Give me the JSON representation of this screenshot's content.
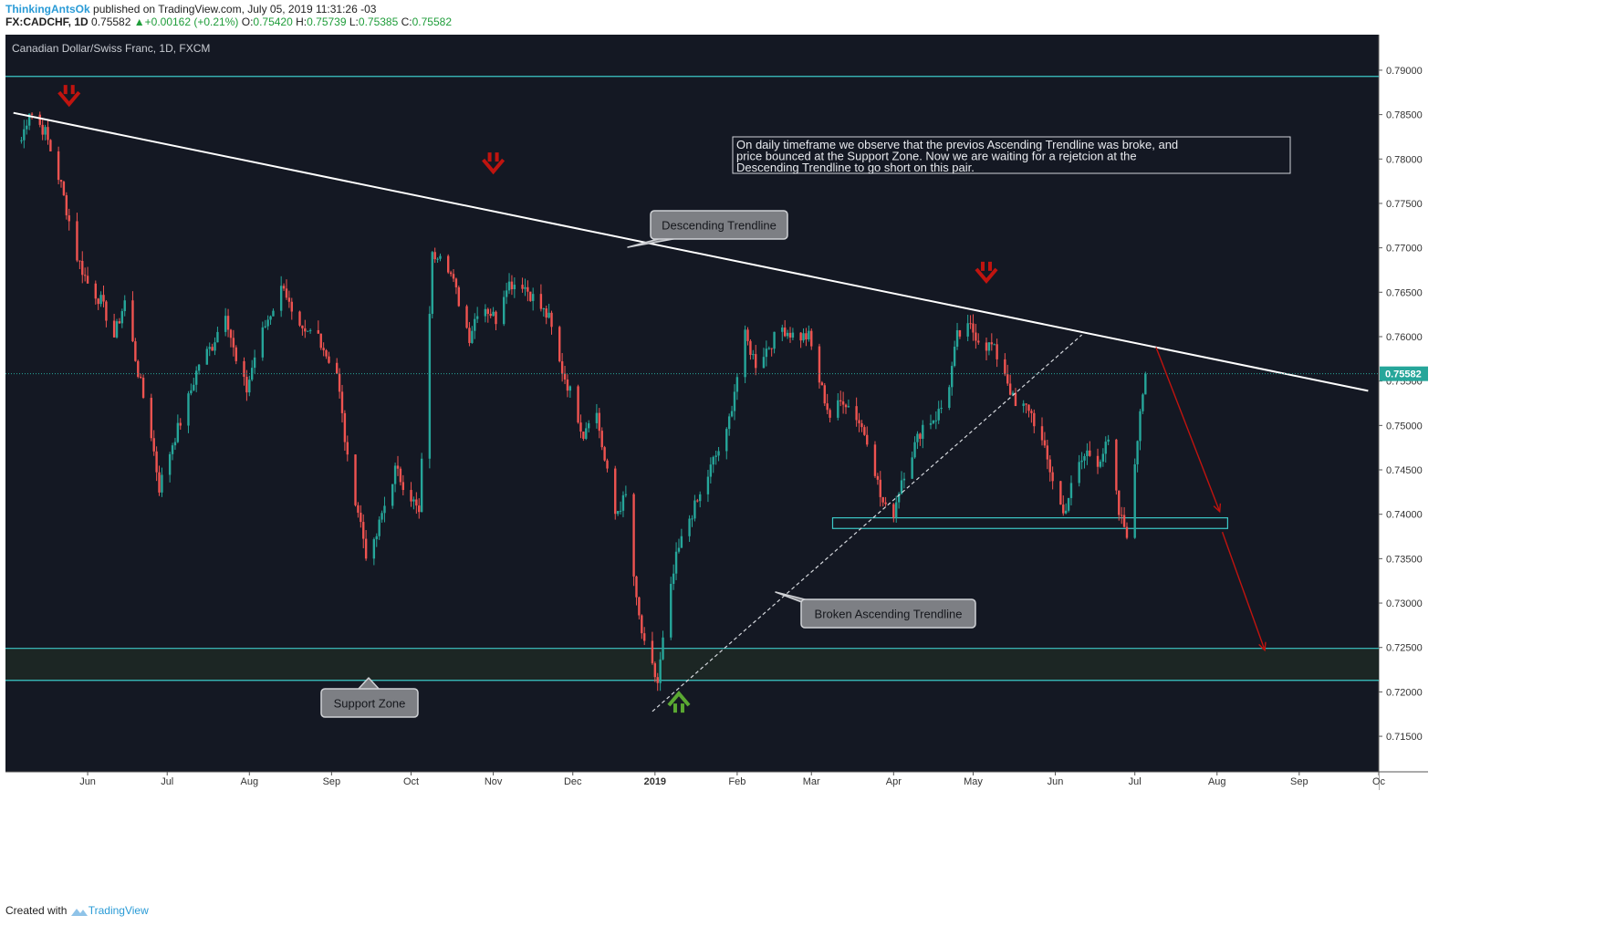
{
  "header": {
    "author": "ThinkingAntsOk",
    "published_text": "published on TradingView.com, July 05, 2019 11:31:26 -03",
    "symbol": "FX:CADCHF, 1D",
    "price": "0.75582",
    "change": "+0.00162 (+0.21%)",
    "open_label": "O:",
    "open": "0.75420",
    "high_label": "H:",
    "high": "0.75739",
    "low_label": "L:",
    "low": "0.75385",
    "close_label": "C:",
    "close": "0.75582"
  },
  "footer": {
    "created_with": "Created with",
    "brand": "TradingView"
  },
  "colors": {
    "background": "#141823",
    "up": "#26a69a",
    "down": "#ef5350",
    "zone_line": "#3cc8c8",
    "trendline": "#ffffff",
    "arrow_red": "#c0140f",
    "arrow_green": "#5aa832",
    "price_label": "#26a69a"
  },
  "chart_data": {
    "type": "candlestick",
    "title": "Canadian Dollar/Swiss Franc, 1D, FXCM",
    "x_ticks": [
      "Jun",
      "Jul",
      "Aug",
      "Sep",
      "Oct",
      "Nov",
      "Dec",
      "2019",
      "Feb",
      "Mar",
      "Apr",
      "May",
      "Jun",
      "Jul",
      "Aug",
      "Sep",
      "Oc"
    ],
    "y_ticks": [
      "0.79000",
      "0.78500",
      "0.78000",
      "0.77500",
      "0.77000",
      "0.76500",
      "0.76000",
      "0.75500",
      "0.75000",
      "0.74500",
      "0.74000",
      "0.73500",
      "0.73000",
      "0.72500",
      "0.72000",
      "0.71500"
    ],
    "ylim": [
      0.711,
      0.794
    ],
    "last_price": 0.75582,
    "last_price_label": "0.75582",
    "anchors": [
      [
        "2018-05-06",
        0.781
      ],
      [
        "2018-05-10",
        0.7855
      ],
      [
        "2018-05-16",
        0.783
      ],
      [
        "2018-05-22",
        0.777
      ],
      [
        "2018-05-28",
        0.769
      ],
      [
        "2018-06-01",
        0.766
      ],
      [
        "2018-06-06",
        0.764
      ],
      [
        "2018-06-11",
        0.76
      ],
      [
        "2018-06-15",
        0.764
      ],
      [
        "2018-06-20",
        0.756
      ],
      [
        "2018-06-25",
        0.749
      ],
      [
        "2018-06-28",
        0.743
      ],
      [
        "2018-07-03",
        0.748
      ],
      [
        "2018-07-08",
        0.752
      ],
      [
        "2018-07-13",
        0.757
      ],
      [
        "2018-07-18",
        0.759
      ],
      [
        "2018-07-23",
        0.763
      ],
      [
        "2018-07-27",
        0.757
      ],
      [
        "2018-07-31",
        0.754
      ],
      [
        "2018-08-04",
        0.759
      ],
      [
        "2018-08-08",
        0.762
      ],
      [
        "2018-08-14",
        0.766
      ],
      [
        "2018-08-18",
        0.761
      ],
      [
        "2018-08-22",
        0.76
      ],
      [
        "2018-08-26",
        0.761
      ],
      [
        "2018-08-30",
        0.758
      ],
      [
        "2018-09-03",
        0.756
      ],
      [
        "2018-09-07",
        0.746
      ],
      [
        "2018-09-12",
        0.739
      ],
      [
        "2018-09-15",
        0.734
      ],
      [
        "2018-09-20",
        0.74
      ],
      [
        "2018-09-25",
        0.745
      ],
      [
        "2018-10-01",
        0.742
      ],
      [
        "2018-10-04",
        0.74
      ],
      [
        "2018-10-07",
        0.757
      ],
      [
        "2018-10-09",
        0.769
      ],
      [
        "2018-10-13",
        0.77
      ],
      [
        "2018-10-18",
        0.765
      ],
      [
        "2018-10-23",
        0.76
      ],
      [
        "2018-10-27",
        0.764
      ],
      [
        "2018-11-02",
        0.762
      ],
      [
        "2018-11-06",
        0.766
      ],
      [
        "2018-11-12",
        0.766
      ],
      [
        "2018-11-17",
        0.764
      ],
      [
        "2018-11-22",
        0.762
      ],
      [
        "2018-11-26",
        0.757
      ],
      [
        "2018-12-01",
        0.753
      ],
      [
        "2018-12-05",
        0.749
      ],
      [
        "2018-12-09",
        0.753
      ],
      [
        "2018-12-13",
        0.746
      ],
      [
        "2018-12-17",
        0.74
      ],
      [
        "2018-12-21",
        0.742
      ],
      [
        "2018-12-25",
        0.73
      ],
      [
        "2018-12-28",
        0.725
      ],
      [
        "2019-01-02",
        0.721
      ],
      [
        "2019-01-05",
        0.728
      ],
      [
        "2019-01-09",
        0.735
      ],
      [
        "2019-01-13",
        0.739
      ],
      [
        "2019-01-18",
        0.742
      ],
      [
        "2019-01-23",
        0.746
      ],
      [
        "2019-01-28",
        0.749
      ],
      [
        "2019-01-31",
        0.754
      ],
      [
        "2019-02-04",
        0.76
      ],
      [
        "2019-02-08",
        0.757
      ],
      [
        "2019-02-13",
        0.759
      ],
      [
        "2019-02-18",
        0.761
      ],
      [
        "2019-02-23",
        0.76
      ],
      [
        "2019-02-28",
        0.76
      ],
      [
        "2019-03-04",
        0.755
      ],
      [
        "2019-03-08",
        0.751
      ],
      [
        "2019-03-13",
        0.753
      ],
      [
        "2019-03-18",
        0.751
      ],
      [
        "2019-03-23",
        0.748
      ],
      [
        "2019-03-27",
        0.742
      ],
      [
        "2019-03-31",
        0.739
      ],
      [
        "2019-04-04",
        0.744
      ],
      [
        "2019-04-08",
        0.747
      ],
      [
        "2019-04-12",
        0.75
      ],
      [
        "2019-04-17",
        0.751
      ],
      [
        "2019-04-21",
        0.753
      ],
      [
        "2019-04-25",
        0.76
      ],
      [
        "2019-04-30",
        0.761
      ],
      [
        "2019-05-05",
        0.759
      ],
      [
        "2019-05-08",
        0.759
      ],
      [
        "2019-05-13",
        0.756
      ],
      [
        "2019-05-17",
        0.752
      ],
      [
        "2019-05-22",
        0.752
      ],
      [
        "2019-05-26",
        0.749
      ],
      [
        "2019-05-30",
        0.745
      ],
      [
        "2019-06-04",
        0.74
      ],
      [
        "2019-06-09",
        0.745
      ],
      [
        "2019-06-13",
        0.747
      ],
      [
        "2019-06-17",
        0.746
      ],
      [
        "2019-06-21",
        0.748
      ],
      [
        "2019-06-25",
        0.74
      ],
      [
        "2019-06-28",
        0.738
      ],
      [
        "2019-07-01",
        0.745
      ],
      [
        "2019-07-03",
        0.752
      ],
      [
        "2019-07-05",
        0.7558
      ]
    ],
    "annotations": {
      "note": "On daily timeframe we observe that the previos Ascending Trendline was broke, and price bounced at the Support Zone. Now we are waiting for a rejetcion at the Descending Trendline to go short on this pair.",
      "descending_trendline_label": "Descending Trendline",
      "broken_ascending_label": "Broken Ascending Trendline",
      "support_zone_label": "Support Zone"
    },
    "levels": {
      "top_line": 0.7893,
      "support_zone": [
        0.7213,
        0.7249
      ],
      "demand_zone": [
        0.7384,
        0.7396
      ],
      "demand_zone_start": "2019-03-09",
      "demand_zone_end": "2019-08-05"
    },
    "descending_trendline": [
      [
        "2018-05-04",
        0.7852
      ],
      [
        "2019-09-27",
        0.7539
      ]
    ],
    "ascending_trendline": [
      [
        "2018-12-31",
        0.7178
      ],
      [
        "2019-06-11",
        0.7602
      ]
    ],
    "projection_arrows": [
      [
        [
          "2019-07-09",
          0.7588
        ],
        [
          "2019-08-02",
          0.7403
        ]
      ],
      [
        [
          "2019-08-03",
          0.738
        ],
        [
          "2019-08-19",
          0.7247
        ]
      ]
    ],
    "down_arrows": [
      [
        "2018-05-25",
        0.787
      ],
      [
        "2018-11-01",
        0.7794
      ],
      [
        "2019-05-06",
        0.7671
      ]
    ],
    "up_arrows": [
      [
        "2019-01-10",
        0.719
      ]
    ]
  }
}
